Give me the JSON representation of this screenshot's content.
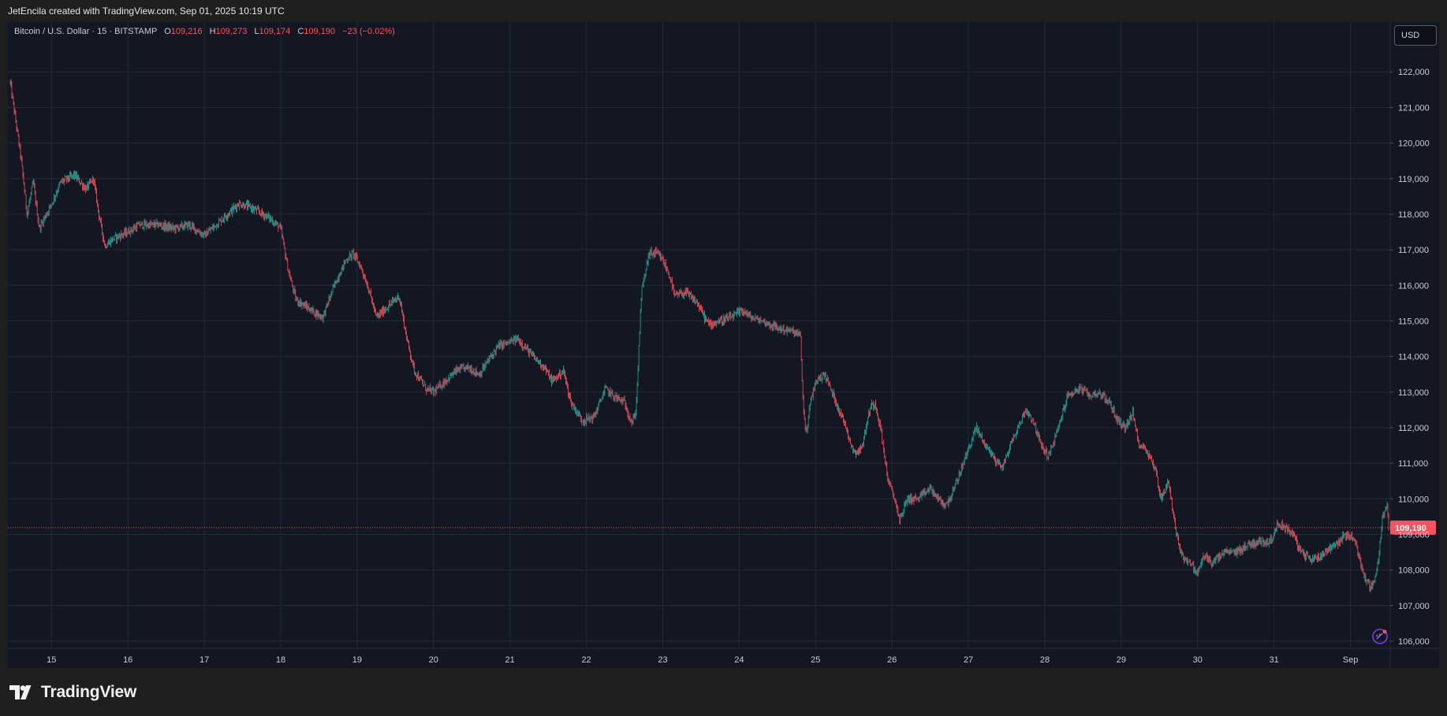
{
  "header": {
    "credit": "JetEncila created with TradingView.com, Sep 01, 2025 10:19 UTC"
  },
  "legend": {
    "symbol": "Bitcoin / U.S. Dollar · 15 · BITSTAMP",
    "open_label": "O",
    "open": "109,216",
    "high_label": "H",
    "high": "109,273",
    "low_label": "L",
    "low": "109,174",
    "close_label": "C",
    "close": "109,190",
    "change": "−23 (−0.02%)"
  },
  "currency_button": "USD",
  "brand": {
    "name": "TradingView",
    "icon": "tradingview-logo-icon"
  },
  "colors": {
    "up": "#26a69a",
    "down": "#f7525f",
    "background": "#131722",
    "grid": "#242a36",
    "price_line": "#f7525f"
  },
  "chart_data": {
    "type": "line",
    "style": "candlestick",
    "interval": "15",
    "grid": true,
    "current_price": 109190,
    "current_price_label": "109,190",
    "ylim": [
      105800,
      123400
    ],
    "y_ticks": [
      {
        "value": 106000,
        "label": "106,000"
      },
      {
        "value": 107000,
        "label": "107,000"
      },
      {
        "value": 108000,
        "label": "108,000"
      },
      {
        "value": 109000,
        "label": "109,000"
      },
      {
        "value": 110000,
        "label": "110,000"
      },
      {
        "value": 111000,
        "label": "111,000"
      },
      {
        "value": 112000,
        "label": "112,000"
      },
      {
        "value": 113000,
        "label": "113,000"
      },
      {
        "value": 114000,
        "label": "114,000"
      },
      {
        "value": 115000,
        "label": "115,000"
      },
      {
        "value": 116000,
        "label": "116,000"
      },
      {
        "value": 117000,
        "label": "117,000"
      },
      {
        "value": 118000,
        "label": "118,000"
      },
      {
        "value": 119000,
        "label": "119,000"
      },
      {
        "value": 120000,
        "label": "120,000"
      },
      {
        "value": 121000,
        "label": "121,000"
      },
      {
        "value": 122000,
        "label": "122,000"
      }
    ],
    "xlim": [
      14.45,
      32.5
    ],
    "x_ticks": [
      {
        "value": 15,
        "label": "15"
      },
      {
        "value": 16,
        "label": "16"
      },
      {
        "value": 17,
        "label": "17"
      },
      {
        "value": 18,
        "label": "18"
      },
      {
        "value": 19,
        "label": "19"
      },
      {
        "value": 20,
        "label": "20"
      },
      {
        "value": 21,
        "label": "21"
      },
      {
        "value": 22,
        "label": "22"
      },
      {
        "value": 23,
        "label": "23"
      },
      {
        "value": 24,
        "label": "24"
      },
      {
        "value": 25,
        "label": "25"
      },
      {
        "value": 26,
        "label": "26"
      },
      {
        "value": 27,
        "label": "27"
      },
      {
        "value": 28,
        "label": "28"
      },
      {
        "value": 29,
        "label": "29"
      },
      {
        "value": 30,
        "label": "30"
      },
      {
        "value": 31,
        "label": "31"
      },
      {
        "value": 32,
        "label": "Sep"
      }
    ],
    "path": [
      [
        14.46,
        121700
      ],
      [
        14.52,
        120800
      ],
      [
        14.6,
        119600
      ],
      [
        14.68,
        118000
      ],
      [
        14.76,
        118900
      ],
      [
        14.84,
        117600
      ],
      [
        15.0,
        118300
      ],
      [
        15.12,
        118900
      ],
      [
        15.3,
        119100
      ],
      [
        15.45,
        118700
      ],
      [
        15.55,
        119000
      ],
      [
        15.62,
        118000
      ],
      [
        15.7,
        117100
      ],
      [
        15.8,
        117300
      ],
      [
        16.0,
        117500
      ],
      [
        16.15,
        117700
      ],
      [
        16.4,
        117700
      ],
      [
        16.6,
        117600
      ],
      [
        16.8,
        117700
      ],
      [
        17.0,
        117400
      ],
      [
        17.2,
        117800
      ],
      [
        17.45,
        118300
      ],
      [
        17.6,
        118200
      ],
      [
        17.85,
        117900
      ],
      [
        18.0,
        117600
      ],
      [
        18.1,
        116400
      ],
      [
        18.2,
        115600
      ],
      [
        18.4,
        115300
      ],
      [
        18.55,
        115100
      ],
      [
        18.7,
        116000
      ],
      [
        18.85,
        116700
      ],
      [
        18.95,
        116900
      ],
      [
        19.05,
        116500
      ],
      [
        19.15,
        115900
      ],
      [
        19.25,
        115100
      ],
      [
        19.4,
        115400
      ],
      [
        19.55,
        115700
      ],
      [
        19.65,
        114500
      ],
      [
        19.75,
        113600
      ],
      [
        19.9,
        113100
      ],
      [
        20.0,
        113000
      ],
      [
        20.15,
        113300
      ],
      [
        20.3,
        113600
      ],
      [
        20.45,
        113700
      ],
      [
        20.6,
        113500
      ],
      [
        20.75,
        114000
      ],
      [
        20.85,
        114300
      ],
      [
        21.0,
        114400
      ],
      [
        21.1,
        114500
      ],
      [
        21.3,
        114000
      ],
      [
        21.45,
        113700
      ],
      [
        21.55,
        113300
      ],
      [
        21.7,
        113600
      ],
      [
        21.8,
        112700
      ],
      [
        21.95,
        112200
      ],
      [
        22.1,
        112300
      ],
      [
        22.25,
        113100
      ],
      [
        22.35,
        112900
      ],
      [
        22.5,
        112700
      ],
      [
        22.6,
        112100
      ],
      [
        22.65,
        112500
      ],
      [
        22.72,
        115800
      ],
      [
        22.82,
        116900
      ],
      [
        22.92,
        116900
      ],
      [
        23.0,
        116700
      ],
      [
        23.1,
        116200
      ],
      [
        23.15,
        115700
      ],
      [
        23.3,
        115800
      ],
      [
        23.45,
        115500
      ],
      [
        23.6,
        114900
      ],
      [
        23.75,
        115000
      ],
      [
        23.9,
        115100
      ],
      [
        24.05,
        115300
      ],
      [
        24.15,
        115100
      ],
      [
        24.3,
        115000
      ],
      [
        24.5,
        114800
      ],
      [
        24.7,
        114700
      ],
      [
        24.8,
        114600
      ],
      [
        24.84,
        112500
      ],
      [
        24.88,
        111800
      ],
      [
        24.93,
        112700
      ],
      [
        25.0,
        113300
      ],
      [
        25.12,
        113500
      ],
      [
        25.25,
        112800
      ],
      [
        25.4,
        112000
      ],
      [
        25.5,
        111300
      ],
      [
        25.6,
        111400
      ],
      [
        25.72,
        112600
      ],
      [
        25.78,
        112700
      ],
      [
        25.85,
        112000
      ],
      [
        25.95,
        110500
      ],
      [
        26.05,
        109900
      ],
      [
        26.1,
        109400
      ],
      [
        26.2,
        110000
      ],
      [
        26.35,
        110000
      ],
      [
        26.5,
        110300
      ],
      [
        26.6,
        110000
      ],
      [
        26.7,
        109800
      ],
      [
        26.8,
        110200
      ],
      [
        26.9,
        110800
      ],
      [
        27.0,
        111400
      ],
      [
        27.1,
        112000
      ],
      [
        27.2,
        111600
      ],
      [
        27.35,
        111100
      ],
      [
        27.45,
        110900
      ],
      [
        27.55,
        111500
      ],
      [
        27.65,
        112000
      ],
      [
        27.75,
        112500
      ],
      [
        27.85,
        112200
      ],
      [
        27.95,
        111500
      ],
      [
        28.05,
        111200
      ],
      [
        28.15,
        111800
      ],
      [
        28.3,
        112900
      ],
      [
        28.45,
        113100
      ],
      [
        28.6,
        112900
      ],
      [
        28.7,
        113000
      ],
      [
        28.85,
        112700
      ],
      [
        28.95,
        112200
      ],
      [
        29.05,
        112000
      ],
      [
        29.15,
        112400
      ],
      [
        29.22,
        111600
      ],
      [
        29.35,
        111300
      ],
      [
        29.45,
        110800
      ],
      [
        29.52,
        110000
      ],
      [
        29.62,
        110500
      ],
      [
        29.72,
        109000
      ],
      [
        29.8,
        108400
      ],
      [
        29.9,
        108200
      ],
      [
        30.0,
        107900
      ],
      [
        30.08,
        108400
      ],
      [
        30.2,
        108200
      ],
      [
        30.35,
        108500
      ],
      [
        30.5,
        108500
      ],
      [
        30.65,
        108700
      ],
      [
        30.8,
        108800
      ],
      [
        30.95,
        108800
      ],
      [
        31.05,
        109300
      ],
      [
        31.15,
        109200
      ],
      [
        31.25,
        109000
      ],
      [
        31.35,
        108500
      ],
      [
        31.5,
        108300
      ],
      [
        31.6,
        108400
      ],
      [
        31.72,
        108600
      ],
      [
        31.85,
        108800
      ],
      [
        31.95,
        109000
      ],
      [
        32.05,
        108900
      ],
      [
        32.12,
        108300
      ],
      [
        32.2,
        107700
      ],
      [
        32.28,
        107500
      ],
      [
        32.35,
        108000
      ],
      [
        32.42,
        109500
      ],
      [
        32.48,
        109800
      ],
      [
        32.5,
        109190
      ]
    ]
  }
}
